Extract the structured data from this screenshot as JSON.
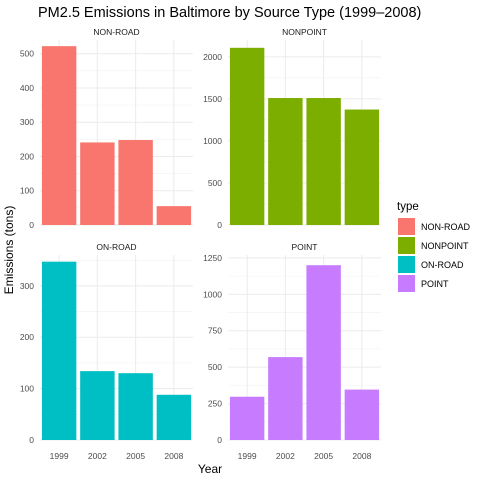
{
  "chart_data": {
    "type": "bar",
    "title": "PM2.5 Emissions in Baltimore by Source Type (1999–2008)",
    "xlabel": "Year",
    "ylabel": "Emissions (tons)",
    "categories": [
      "1999",
      "2002",
      "2005",
      "2008"
    ],
    "legend": {
      "title": "type",
      "placement": "right",
      "entries": [
        {
          "label": "NON-ROAD",
          "color": "#F8766D"
        },
        {
          "label": "NONPOINT",
          "color": "#7CAE00"
        },
        {
          "label": "ON-ROAD",
          "color": "#00BFC4"
        },
        {
          "label": "POINT",
          "color": "#C77CFF"
        }
      ]
    },
    "panels": [
      {
        "name": "NON-ROAD",
        "color": "#F8766D",
        "values": [
          522,
          241,
          248,
          55
        ],
        "ylim": [
          0,
          540
        ],
        "yticks": [
          0,
          100,
          200,
          300,
          400,
          500
        ],
        "show_x_ticks": false
      },
      {
        "name": "NONPOINT",
        "color": "#7CAE00",
        "values": [
          2107,
          1510,
          1510,
          1373
        ],
        "ylim": [
          0,
          2200
        ],
        "yticks": [
          0,
          500,
          1000,
          1500,
          2000
        ],
        "show_x_ticks": false
      },
      {
        "name": "ON-ROAD",
        "color": "#00BFC4",
        "values": [
          347,
          134,
          130,
          88
        ],
        "ylim": [
          0,
          360
        ],
        "yticks": [
          0,
          100,
          200,
          300
        ],
        "show_x_ticks": true
      },
      {
        "name": "POINT",
        "color": "#C77CFF",
        "values": [
          297,
          569,
          1200,
          346
        ],
        "ylim": [
          0,
          1270
        ],
        "yticks": [
          0,
          250,
          500,
          750,
          1000,
          1250
        ],
        "show_x_ticks": true
      }
    ]
  }
}
